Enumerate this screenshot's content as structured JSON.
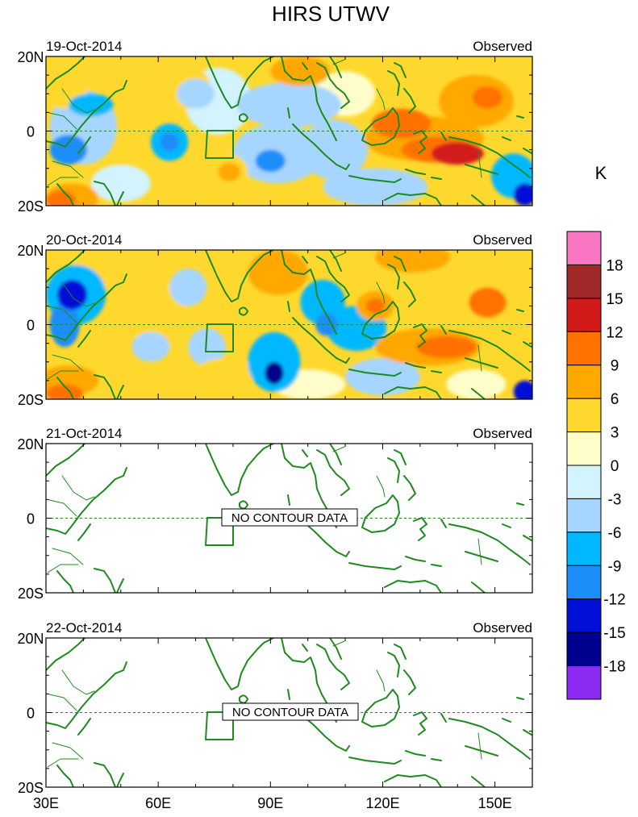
{
  "chart_data": {
    "type": "heatmap",
    "title": "HIRS UTWV",
    "units": "K",
    "xlabel": "",
    "ylabel": "",
    "x_range": [
      30,
      160
    ],
    "y_range": [
      -20,
      20
    ],
    "x_ticks": [
      {
        "value": 30,
        "label": "30E"
      },
      {
        "value": 60,
        "label": "60E"
      },
      {
        "value": 90,
        "label": "90E"
      },
      {
        "value": 120,
        "label": "120E"
      },
      {
        "value": 150,
        "label": "150E"
      }
    ],
    "y_ticks": [
      {
        "value": 20,
        "label": "20N"
      },
      {
        "value": 0,
        "label": "0"
      },
      {
        "value": -20,
        "label": "20S"
      }
    ],
    "colorbar": {
      "labels": [
        "18",
        "15",
        "12",
        "9",
        "6",
        "3",
        "0",
        "-3",
        "-6",
        "-9",
        "-12",
        "-15",
        "-18"
      ],
      "colors": [
        "#f977c2",
        "#a02828",
        "#d21a1a",
        "#ff7200",
        "#ffa800",
        "#ffd82e",
        "#fffdc9",
        "#d2f3ff",
        "#a6d6ff",
        "#00b8ff",
        "#1c8ef9",
        "#0010d6",
        "#00008f",
        "#8c2cf2"
      ]
    },
    "panels": [
      {
        "date": "19-Oct-2014",
        "label": "Observed",
        "has_data": true,
        "no_data_text": "",
        "blobs": [
          {
            "lon": 35,
            "lat": 12,
            "rx": 6,
            "ry": 6,
            "v": 6
          },
          {
            "lon": 40,
            "lat": 1,
            "rx": 9,
            "ry": 10,
            "v": -5
          },
          {
            "lon": 36,
            "lat": -5,
            "rx": 5,
            "ry": 4,
            "v": -9
          },
          {
            "lon": 42,
            "lat": 7,
            "rx": 6,
            "ry": 3,
            "v": -7
          },
          {
            "lon": 37,
            "lat": -18,
            "rx": 7,
            "ry": 4,
            "v": 9
          },
          {
            "lon": 34,
            "lat": -18.5,
            "rx": 4,
            "ry": 2.5,
            "v": 12
          },
          {
            "lon": 62,
            "lat": 12,
            "rx": 12,
            "ry": 7,
            "v": 4
          },
          {
            "lon": 76,
            "lat": 8,
            "rx": 9,
            "ry": 9,
            "v": 0
          },
          {
            "lon": 70,
            "lat": 10,
            "rx": 5,
            "ry": 4,
            "v": -4
          },
          {
            "lon": 63,
            "lat": -3,
            "rx": 5,
            "ry": 5,
            "v": -6
          },
          {
            "lon": 63,
            "lat": -3,
            "rx": 2.5,
            "ry": 2.5,
            "v": -9
          },
          {
            "lon": 78,
            "lat": -11,
            "rx": 6,
            "ry": 5,
            "v": 6
          },
          {
            "lon": 79,
            "lat": -11,
            "rx": 3,
            "ry": 2.5,
            "v": 9
          },
          {
            "lon": 95,
            "lat": 7,
            "rx": 14,
            "ry": 6,
            "v": -4
          },
          {
            "lon": 92,
            "lat": -6,
            "rx": 12,
            "ry": 8,
            "v": -5
          },
          {
            "lon": 90,
            "lat": -8,
            "rx": 4,
            "ry": 3,
            "v": -9
          },
          {
            "lon": 98,
            "lat": 16,
            "rx": 8,
            "ry": 4,
            "v": 9
          },
          {
            "lon": 110,
            "lat": 10,
            "rx": 8,
            "ry": 6,
            "v": 3
          },
          {
            "lon": 107,
            "lat": -5,
            "rx": 9,
            "ry": 8,
            "v": -5
          },
          {
            "lon": 131,
            "lat": -2,
            "rx": 16,
            "ry": 6,
            "v": 9
          },
          {
            "lon": 125,
            "lat": 2,
            "rx": 8,
            "ry": 4,
            "v": 12
          },
          {
            "lon": 135,
            "lat": -5,
            "rx": 10,
            "ry": 3.5,
            "v": 12
          },
          {
            "lon": 140,
            "lat": -6,
            "rx": 7,
            "ry": 3,
            "v": 15
          },
          {
            "lon": 145,
            "lat": 8,
            "rx": 10,
            "ry": 7,
            "v": 9
          },
          {
            "lon": 148,
            "lat": 9,
            "rx": 4,
            "ry": 3,
            "v": 12
          },
          {
            "lon": 118,
            "lat": -15,
            "rx": 14,
            "ry": 5,
            "v": -4
          },
          {
            "lon": 155,
            "lat": -12,
            "rx": 6,
            "ry": 6,
            "v": -6
          },
          {
            "lon": 158,
            "lat": -17,
            "rx": 3,
            "ry": 3,
            "v": -12
          },
          {
            "lon": 50,
            "lat": -14,
            "rx": 8,
            "ry": 5,
            "v": 0
          }
        ]
      },
      {
        "date": "20-Oct-2014",
        "label": "Observed",
        "has_data": true,
        "no_data_text": "",
        "blobs": [
          {
            "lon": 38,
            "lat": 8,
            "rx": 8,
            "ry": 8,
            "v": -7
          },
          {
            "lon": 37,
            "lat": 8,
            "rx": 4,
            "ry": 4,
            "v": -12
          },
          {
            "lon": 35,
            "lat": 0,
            "rx": 4,
            "ry": 6,
            "v": -9
          },
          {
            "lon": 36,
            "lat": -15,
            "rx": 8,
            "ry": 4,
            "v": 9
          },
          {
            "lon": 35,
            "lat": -18.5,
            "rx": 5,
            "ry": 2.5,
            "v": 12
          },
          {
            "lon": 45,
            "lat": 15,
            "rx": 8,
            "ry": 5,
            "v": 6
          },
          {
            "lon": 60,
            "lat": 2,
            "rx": 8,
            "ry": 10,
            "v": 4
          },
          {
            "lon": 68,
            "lat": 10,
            "rx": 5,
            "ry": 5,
            "v": -5
          },
          {
            "lon": 58,
            "lat": -6,
            "rx": 5,
            "ry": 4,
            "v": -5
          },
          {
            "lon": 78,
            "lat": -13,
            "rx": 8,
            "ry": 4,
            "v": 6
          },
          {
            "lon": 80,
            "lat": 15,
            "rx": 7,
            "ry": 5,
            "v": 6
          },
          {
            "lon": 92,
            "lat": 14,
            "rx": 8,
            "ry": 6,
            "v": 9
          },
          {
            "lon": 91,
            "lat": -10,
            "rx": 7,
            "ry": 8,
            "v": -6
          },
          {
            "lon": 91,
            "lat": -13,
            "rx": 2.5,
            "ry": 3,
            "v": -15
          },
          {
            "lon": 104,
            "lat": 6,
            "rx": 6,
            "ry": 6,
            "v": -6
          },
          {
            "lon": 105,
            "lat": 0,
            "rx": 3,
            "ry": 3,
            "v": -9
          },
          {
            "lon": 113,
            "lat": -1,
            "rx": 8,
            "ry": 6,
            "v": -6
          },
          {
            "lon": 118,
            "lat": 5,
            "rx": 5,
            "ry": 4,
            "v": 9
          },
          {
            "lon": 118,
            "lat": 5,
            "rx": 2.5,
            "ry": 2,
            "v": 12
          },
          {
            "lon": 132,
            "lat": -6,
            "rx": 14,
            "ry": 5,
            "v": 9
          },
          {
            "lon": 137,
            "lat": -6,
            "rx": 8,
            "ry": 3,
            "v": 12
          },
          {
            "lon": 140,
            "lat": 10,
            "rx": 14,
            "ry": 6,
            "v": 6
          },
          {
            "lon": 148,
            "lat": 6,
            "rx": 5,
            "ry": 4,
            "v": 12
          },
          {
            "lon": 128,
            "lat": 18,
            "rx": 10,
            "ry": 4,
            "v": 9
          },
          {
            "lon": 120,
            "lat": -14,
            "rx": 10,
            "ry": 5,
            "v": -4
          },
          {
            "lon": 145,
            "lat": -16,
            "rx": 8,
            "ry": 4,
            "v": 3
          },
          {
            "lon": 158,
            "lat": -18,
            "rx": 3,
            "ry": 3,
            "v": -12
          },
          {
            "lon": 73,
            "lat": -6,
            "rx": 5,
            "ry": 5,
            "v": -3
          },
          {
            "lon": 100,
            "lat": -16,
            "rx": 10,
            "ry": 4,
            "v": 3
          }
        ]
      },
      {
        "date": "21-Oct-2014",
        "label": "Observed",
        "has_data": false,
        "no_data_text": "NO CONTOUR DATA",
        "blobs": []
      },
      {
        "date": "22-Oct-2014",
        "label": "Observed",
        "has_data": false,
        "no_data_text": "NO CONTOUR DATA",
        "blobs": []
      }
    ]
  }
}
